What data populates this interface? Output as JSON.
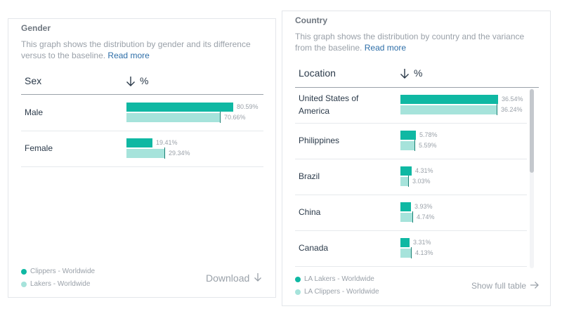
{
  "colors": {
    "primary": "#0fb8a3",
    "secondary": "#a6e3db"
  },
  "gender": {
    "title": "Gender",
    "description": "This graph shows the distribution by gender and its difference versus to the baseline.",
    "read_more": "Read more",
    "col_label": "Sex",
    "col_value": "%",
    "legend": [
      "Clippers - Worldwide",
      "Lakers - Worldwide"
    ],
    "download": "Download"
  },
  "country": {
    "title": "Country",
    "description": "This graph shows the distribution by country and the variance from the baseline.",
    "read_more": "Read more",
    "col_label": "Location",
    "col_value": "%",
    "legend": [
      "LA Lakers - Worldwide",
      "LA Clippers - Worldwide"
    ],
    "show_full_table": "Show full table"
  },
  "chart_data": [
    {
      "type": "bar",
      "title": "Gender",
      "categories": [
        "Male",
        "Female"
      ],
      "series": [
        {
          "name": "Clippers - Worldwide",
          "values": [
            80.59,
            19.41
          ],
          "labels": [
            "80.59%",
            "19.41%"
          ]
        },
        {
          "name": "Lakers - Worldwide",
          "values": [
            70.66,
            29.34
          ],
          "labels": [
            "70.66%",
            "29.34%"
          ]
        }
      ],
      "xlim": [
        0,
        100
      ],
      "legend_position": "bottom-left"
    },
    {
      "type": "bar",
      "title": "Country",
      "categories": [
        "United States of America",
        "Philippines",
        "Brazil",
        "China",
        "Canada"
      ],
      "series": [
        {
          "name": "LA Lakers - Worldwide",
          "values": [
            36.54,
            5.78,
            4.31,
            3.93,
            3.31
          ],
          "labels": [
            "36.54%",
            "5.78%",
            "4.31%",
            "3.93%",
            "3.31%"
          ]
        },
        {
          "name": "LA Clippers - Worldwide",
          "values": [
            36.24,
            5.59,
            3.03,
            4.74,
            4.13
          ],
          "labels": [
            "36.24%",
            "5.59%",
            "3.03%",
            "4.74%",
            "4.13%"
          ]
        }
      ],
      "xlim": [
        0,
        40
      ],
      "legend_position": "bottom-left"
    }
  ]
}
